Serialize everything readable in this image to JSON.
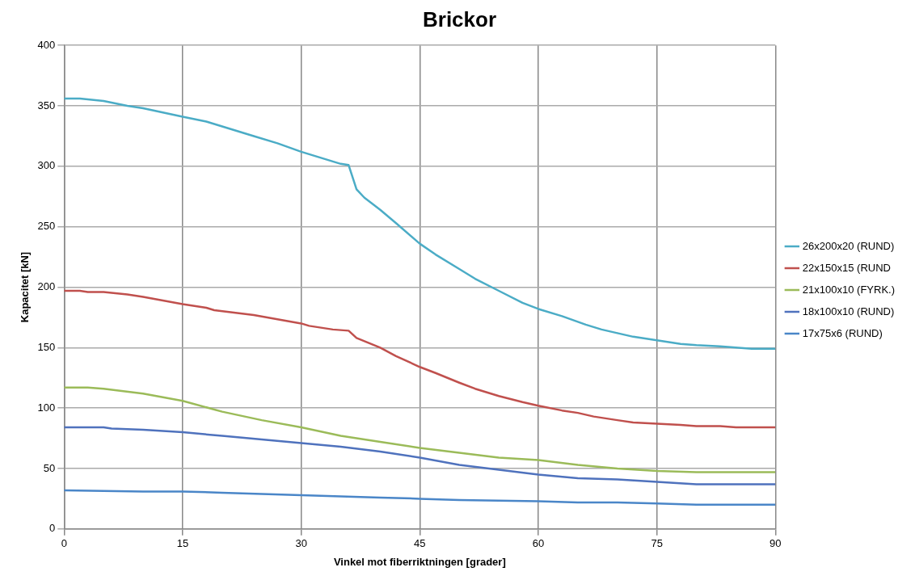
{
  "chart_data": {
    "type": "line",
    "title": "Brickor",
    "xlabel": "Vinkel mot fiberriktningen [grader]",
    "ylabel": "Kapacitet [kN]",
    "xlim": [
      0,
      90
    ],
    "xticks": [
      0,
      15,
      30,
      45,
      60,
      75,
      90
    ],
    "ylim": [
      0,
      400
    ],
    "yticks": [
      0,
      50,
      100,
      150,
      200,
      250,
      300,
      350,
      400
    ],
    "grid": true,
    "legend": "right",
    "series": [
      {
        "name": "26x200x20 (RUND)",
        "color": "#4bacc6",
        "x": [
          0,
          2,
          5,
          8,
          10,
          15,
          18,
          21,
          24,
          27,
          30,
          33,
          35,
          36,
          37,
          38,
          40,
          42,
          45,
          47,
          50,
          52,
          55,
          58,
          60,
          63,
          66,
          68,
          70,
          72,
          75,
          78,
          80,
          83,
          85,
          87,
          90
        ],
        "values": [
          356,
          356,
          354,
          350,
          348,
          341,
          337,
          331,
          325,
          319,
          312,
          306,
          302,
          301,
          281,
          274,
          264,
          253,
          236,
          227,
          215,
          207,
          197,
          187,
          182,
          176,
          169,
          165,
          162,
          159,
          156,
          153,
          152,
          151,
          150,
          149,
          149
        ]
      },
      {
        "name": "22x150x15 (RUND",
        "color": "#c0504d",
        "x": [
          0,
          2,
          3,
          5,
          8,
          10,
          15,
          18,
          19,
          24,
          30,
          31,
          34,
          36,
          37,
          40,
          42,
          45,
          47,
          50,
          52,
          55,
          58,
          60,
          63,
          65,
          67,
          70,
          72,
          75,
          78,
          80,
          83,
          85,
          90
        ],
        "values": [
          197,
          197,
          196,
          196,
          194,
          192,
          186,
          183,
          181,
          177,
          170,
          168,
          165,
          164,
          158,
          150,
          143,
          134,
          129,
          121,
          116,
          110,
          105,
          102,
          98,
          96,
          93,
          90,
          88,
          87,
          86,
          85,
          85,
          84,
          84
        ]
      },
      {
        "name": "21x100x10 (FYRK.)",
        "color": "#9bbb59",
        "x": [
          0,
          3,
          5,
          10,
          15,
          20,
          25,
          30,
          35,
          40,
          45,
          50,
          55,
          60,
          65,
          70,
          75,
          80,
          90
        ],
        "values": [
          117,
          117,
          116,
          112,
          106,
          97,
          90,
          84,
          77,
          72,
          67,
          63,
          59,
          57,
          53,
          50,
          48,
          47,
          47
        ]
      },
      {
        "name": "18x100x10 (RUND)",
        "color": "#4f72bd",
        "x": [
          0,
          5,
          6,
          10,
          15,
          20,
          25,
          30,
          35,
          40,
          45,
          50,
          55,
          60,
          65,
          70,
          75,
          80,
          90
        ],
        "values": [
          84,
          84,
          83,
          82,
          80,
          77,
          74,
          71,
          68,
          64,
          59,
          53,
          49,
          45,
          42,
          41,
          39,
          37,
          37
        ]
      },
      {
        "name": "17x75x6 (RUND)",
        "color": "#4a86c8",
        "x": [
          0,
          10,
          15,
          20,
          30,
          35,
          40,
          45,
          50,
          60,
          65,
          70,
          75,
          80,
          90
        ],
        "values": [
          32,
          31,
          31,
          30,
          28,
          27,
          26,
          25,
          24,
          23,
          22,
          22,
          21,
          20,
          20
        ]
      }
    ]
  }
}
